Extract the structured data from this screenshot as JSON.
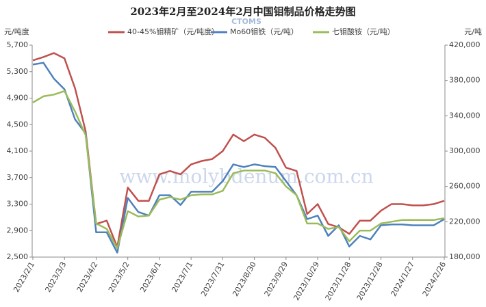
{
  "chart_data": {
    "type": "line",
    "title": "2023年2月至2024年2月中国钼制品价格走势图",
    "y_label": "元/吨度",
    "y2_label": "元/吨",
    "watermark": "www.molybdenum.com.cn",
    "watermark_logo": "CTOMS",
    "categories": [
      "2023/2/1",
      null,
      null,
      "2023/3/3",
      null,
      null,
      "2023/4/2",
      null,
      null,
      "2023/5/2",
      null,
      null,
      "2023/6/1",
      null,
      null,
      "2023/7/1",
      null,
      null,
      "2023/7/31",
      null,
      null,
      "2023/8/30",
      null,
      null,
      "2023/9/29",
      null,
      null,
      "2023/10/29",
      null,
      null,
      "2023/11/28",
      null,
      null,
      "2023/12/28",
      null,
      null,
      "2024/1/27",
      null,
      null,
      "2024/2/26"
    ],
    "series": [
      {
        "name": "40-45%钼精矿（元/吨度）",
        "color": "#c0504d",
        "axis": "y",
        "values": [
          5470,
          5520,
          5580,
          5500,
          5050,
          4400,
          3000,
          3050,
          2650,
          3550,
          3350,
          3350,
          3750,
          3800,
          3750,
          3900,
          3950,
          3980,
          4100,
          4350,
          4250,
          4350,
          4300,
          4150,
          3850,
          3800,
          3150,
          3300,
          3000,
          2950,
          2850,
          3050,
          3050,
          3200,
          3300,
          3300,
          3280,
          3280,
          3300,
          3350
        ]
      },
      {
        "name": "Mo60钼铁（元/吨）",
        "color": "#4f81bd",
        "axis": "y2",
        "values": [
          398000,
          400000,
          382000,
          370000,
          336000,
          320000,
          208000,
          208000,
          185000,
          247000,
          231000,
          227000,
          250000,
          250000,
          239000,
          254000,
          254000,
          254000,
          266000,
          285000,
          282000,
          285000,
          283000,
          282000,
          266000,
          250000,
          223000,
          227000,
          204000,
          216000,
          192000,
          204000,
          200000,
          216000,
          217000,
          217000,
          216000,
          216000,
          216000,
          223000
        ]
      },
      {
        "name": "七钼酸铵（元/吨）",
        "color": "#9bbb59",
        "axis": "y2",
        "values": [
          355000,
          362000,
          364000,
          368000,
          345000,
          318000,
          218000,
          212000,
          190000,
          232000,
          226000,
          227000,
          245000,
          248000,
          245000,
          250000,
          251000,
          251000,
          255000,
          275000,
          278000,
          278000,
          278000,
          275000,
          260000,
          250000,
          218000,
          218000,
          212000,
          214000,
          198000,
          210000,
          210000,
          218000,
          220000,
          222000,
          222000,
          222000,
          222000,
          224000
        ]
      }
    ],
    "ylim": [
      2500,
      5700
    ],
    "yticks": [
      {
        "value": 2500,
        "label": "2,500"
      },
      {
        "value": 2900,
        "label": "2,900"
      },
      {
        "value": 3300,
        "label": "3,300"
      },
      {
        "value": 3700,
        "label": "3,700"
      },
      {
        "value": 4100,
        "label": "4,100"
      },
      {
        "value": 4500,
        "label": "4,500"
      },
      {
        "value": 4900,
        "label": "4,900"
      },
      {
        "value": 5300,
        "label": "5,300"
      },
      {
        "value": 5700,
        "label": "5,700"
      }
    ],
    "y2lim": [
      180000,
      420000
    ],
    "y2ticks": [
      {
        "value": 180000,
        "label": "180,000"
      },
      {
        "value": 220000,
        "label": "220,000"
      },
      {
        "value": 260000,
        "label": "260,000"
      },
      {
        "value": 300000,
        "label": "300,000"
      },
      {
        "value": 340000,
        "label": "340,000"
      },
      {
        "value": 380000,
        "label": "380,000"
      },
      {
        "value": 420000,
        "label": "420,000"
      }
    ],
    "grid": false
  }
}
